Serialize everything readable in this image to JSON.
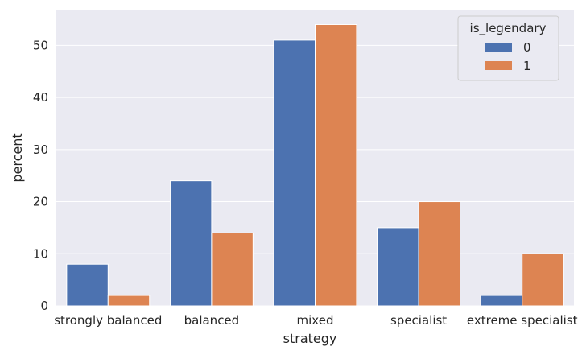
{
  "chart_data": {
    "type": "bar",
    "categories": [
      "strongly balanced",
      "balanced",
      "mixed",
      "specialist",
      "extreme specialist"
    ],
    "series": [
      {
        "name": "0",
        "values": [
          8,
          24,
          51,
          15,
          2
        ],
        "color": "#4c72b0"
      },
      {
        "name": "1",
        "values": [
          2,
          14,
          54,
          20,
          10
        ],
        "color": "#dd8452"
      }
    ],
    "title": "",
    "xlabel": "strategy",
    "ylabel": "percent",
    "ylim": [
      0,
      56.7
    ],
    "yticks": [
      0,
      10,
      20,
      30,
      40,
      50
    ],
    "grid": true,
    "background": "#eaeaf2",
    "legend": {
      "title": "is_legendary",
      "position": "top-right"
    }
  }
}
